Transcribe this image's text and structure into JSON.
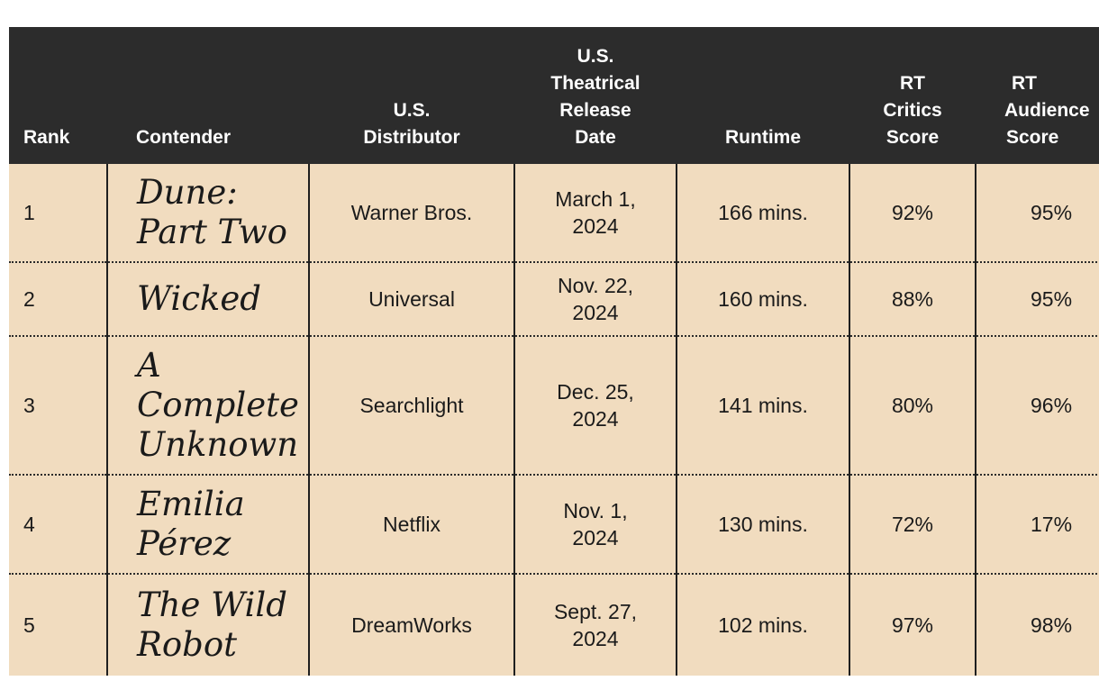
{
  "headers": {
    "rank": [
      "Rank"
    ],
    "contender": [
      "Contender"
    ],
    "distributor": [
      "U.S.",
      "Distributor"
    ],
    "release_date": [
      "U.S.",
      "Theatrical",
      "Release",
      "Date"
    ],
    "runtime": [
      "Runtime"
    ],
    "critics": [
      "RT",
      "Critics",
      "Score"
    ],
    "audience": [
      "RT",
      "Audience",
      "Score"
    ]
  },
  "rows": [
    {
      "rank": "1",
      "contender": [
        "Dune:",
        "Part Two"
      ],
      "distributor": "Warner Bros.",
      "date": [
        "March 1,",
        "2024"
      ],
      "runtime": "166 mins.",
      "critics": "92%",
      "audience": "95%"
    },
    {
      "rank": "2",
      "contender": [
        "Wicked"
      ],
      "distributor": "Universal",
      "date": [
        "Nov. 22,",
        "2024"
      ],
      "runtime": "160 mins.",
      "critics": "88%",
      "audience": "95%"
    },
    {
      "rank": "3",
      "contender": [
        "A",
        "Complete",
        "Unknown"
      ],
      "distributor": "Searchlight",
      "date": [
        "Dec. 25,",
        "2024"
      ],
      "runtime": "141 mins.",
      "critics": "80%",
      "audience": "96%"
    },
    {
      "rank": "4",
      "contender": [
        "Emilia",
        "Pérez"
      ],
      "distributor": "Netflix",
      "date": [
        "Nov. 1,",
        "2024"
      ],
      "runtime": "130 mins.",
      "critics": "72%",
      "audience": "17%"
    },
    {
      "rank": "5",
      "contender": [
        "The Wild",
        "Robot"
      ],
      "distributor": "DreamWorks",
      "date": [
        "Sept. 27,",
        "2024"
      ],
      "runtime": "102 mins.",
      "critics": "97%",
      "audience": "98%"
    }
  ],
  "colors": {
    "header_bg": "#2c2c2c",
    "row_bg": "#f1dcbf"
  }
}
